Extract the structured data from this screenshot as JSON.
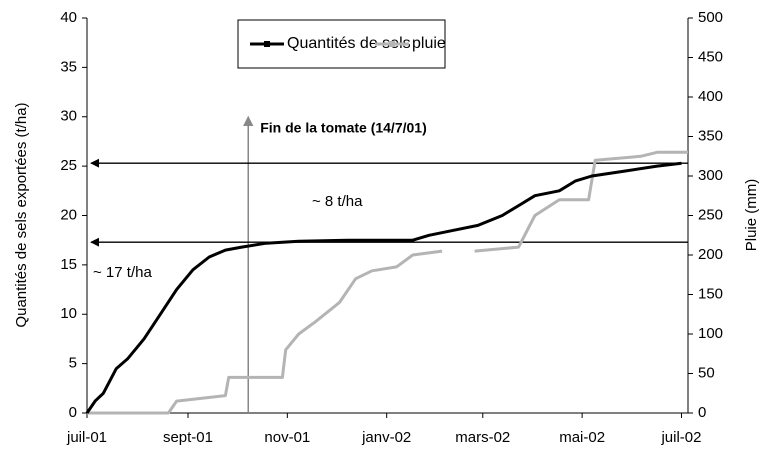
{
  "chart_data": {
    "type": "line",
    "ylabel": "Quantités de sels exportées (t/ha)",
    "y2label": "Pluie (mm)",
    "xlim": [
      0,
      369
    ],
    "xticks": [
      {
        "value": 0,
        "label": "juil-01"
      },
      {
        "value": 62,
        "label": "sept-01"
      },
      {
        "value": 123,
        "label": "nov-01"
      },
      {
        "value": 184,
        "label": "janv-02"
      },
      {
        "value": 243,
        "label": "mars-02"
      },
      {
        "value": 304,
        "label": "mai-02"
      },
      {
        "value": 365,
        "label": "juil-02"
      }
    ],
    "ylim": [
      0,
      40
    ],
    "yticks": [
      0,
      5,
      10,
      15,
      20,
      25,
      30,
      35,
      40
    ],
    "y2lim": [
      0,
      500
    ],
    "y2ticks": [
      0,
      50,
      100,
      150,
      200,
      250,
      300,
      350,
      400,
      450,
      500
    ],
    "legend": "top",
    "series": [
      {
        "name": "Quantités de sels",
        "color": "#000000",
        "x": [
          0,
          5,
          10,
          18,
          25,
          35,
          45,
          55,
          65,
          75,
          85,
          95,
          110,
          130,
          160,
          200,
          210,
          225,
          240,
          255,
          265,
          275,
          290,
          300,
          310,
          330,
          350,
          365
        ],
        "values": [
          0,
          1.2,
          2,
          4.5,
          5.5,
          7.5,
          10,
          12.5,
          14.5,
          15.8,
          16.5,
          16.8,
          17.2,
          17.4,
          17.5,
          17.5,
          18,
          18.5,
          19,
          20,
          21,
          22,
          22.5,
          23.5,
          24,
          24.5,
          25,
          25.3
        ]
      },
      {
        "name": "pluie",
        "color": "#b4b4b4",
        "axis": "y2",
        "x": [
          0,
          50,
          55,
          85,
          87,
          120,
          122,
          130,
          140,
          155,
          165,
          175,
          190,
          200,
          218,
          228,
          238,
          265,
          275,
          290,
          308,
          312,
          340,
          350,
          369
        ],
        "values": [
          0,
          0,
          15,
          22,
          45,
          45,
          80,
          100,
          115,
          140,
          170,
          180,
          185,
          200,
          205,
          null,
          205,
          210,
          250,
          270,
          270,
          320,
          325,
          330,
          330
        ]
      }
    ],
    "annotations": [
      {
        "text": "Fin de la  tomate (14/7/01)",
        "x": 99,
        "y": 30
      },
      {
        "text": "~ 8 t/ha",
        "y": 25.3
      },
      {
        "text": "~ 17 t/ha",
        "y": 17.3
      }
    ]
  }
}
